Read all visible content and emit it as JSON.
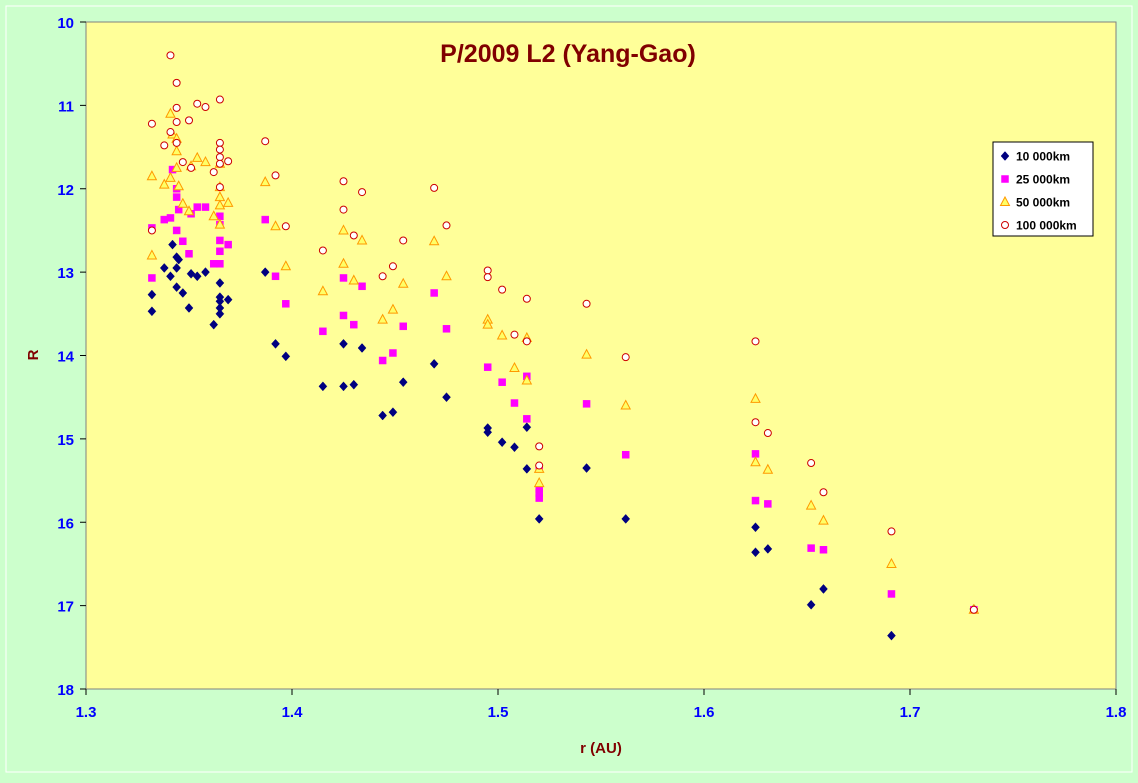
{
  "chart_data": {
    "type": "scatter",
    "title": "P/2009 L2 (Yang-Gao)",
    "xlabel": "r (AU)",
    "ylabel": "R",
    "xlim": [
      1.3,
      1.8
    ],
    "ylim": [
      10,
      18
    ],
    "y_inverted": true,
    "x_ticks": [
      "1.3",
      "1.4",
      "1.5",
      "1.6",
      "1.7",
      "1.8"
    ],
    "y_ticks": [
      "10",
      "11",
      "12",
      "13",
      "14",
      "15",
      "16",
      "17",
      "18"
    ],
    "grid": false,
    "legend_position": "top-right",
    "colors": {
      "plot_background": "#ffff99",
      "outer_background": "#ccffcc",
      "title": "#800000",
      "axis_labels": "#800000",
      "tick_labels": "#0000ff"
    },
    "series": [
      {
        "name": "10 000km",
        "marker": "diamond",
        "color": "#000080",
        "points": [
          [
            1.332,
            13.47
          ],
          [
            1.332,
            13.27
          ],
          [
            1.338,
            12.95
          ],
          [
            1.341,
            13.05
          ],
          [
            1.342,
            12.67
          ],
          [
            1.344,
            12.95
          ],
          [
            1.344,
            12.82
          ],
          [
            1.345,
            12.85
          ],
          [
            1.344,
            13.18
          ],
          [
            1.347,
            13.25
          ],
          [
            1.35,
            13.43
          ],
          [
            1.351,
            13.02
          ],
          [
            1.354,
            13.05
          ],
          [
            1.358,
            13.0
          ],
          [
            1.362,
            13.63
          ],
          [
            1.365,
            13.13
          ],
          [
            1.365,
            13.3
          ],
          [
            1.365,
            13.35
          ],
          [
            1.365,
            13.43
          ],
          [
            1.365,
            13.5
          ],
          [
            1.369,
            13.33
          ],
          [
            1.387,
            13.0
          ],
          [
            1.392,
            13.86
          ],
          [
            1.397,
            14.01
          ],
          [
            1.415,
            14.37
          ],
          [
            1.425,
            13.86
          ],
          [
            1.425,
            14.37
          ],
          [
            1.43,
            14.35
          ],
          [
            1.434,
            13.91
          ],
          [
            1.444,
            14.72
          ],
          [
            1.449,
            14.68
          ],
          [
            1.454,
            14.32
          ],
          [
            1.469,
            14.1
          ],
          [
            1.475,
            14.5
          ],
          [
            1.495,
            14.87
          ],
          [
            1.495,
            14.92
          ],
          [
            1.502,
            15.04
          ],
          [
            1.508,
            15.1
          ],
          [
            1.514,
            14.86
          ],
          [
            1.514,
            15.36
          ],
          [
            1.52,
            15.96
          ],
          [
            1.543,
            15.35
          ],
          [
            1.562,
            15.96
          ],
          [
            1.625,
            16.06
          ],
          [
            1.625,
            16.36
          ],
          [
            1.631,
            16.32
          ],
          [
            1.652,
            16.99
          ],
          [
            1.658,
            16.8
          ],
          [
            1.691,
            17.36
          ],
          [
            1.731,
            17.04
          ]
        ]
      },
      {
        "name": "25 000km",
        "marker": "square",
        "color": "#ff00ff",
        "points": [
          [
            1.332,
            12.47
          ],
          [
            1.332,
            13.07
          ],
          [
            1.338,
            12.37
          ],
          [
            1.341,
            12.35
          ],
          [
            1.342,
            11.77
          ],
          [
            1.344,
            12.0
          ],
          [
            1.344,
            12.1
          ],
          [
            1.345,
            12.25
          ],
          [
            1.344,
            12.5
          ],
          [
            1.347,
            12.63
          ],
          [
            1.35,
            12.78
          ],
          [
            1.351,
            12.3
          ],
          [
            1.354,
            12.22
          ],
          [
            1.358,
            12.22
          ],
          [
            1.362,
            12.9
          ],
          [
            1.365,
            12.33
          ],
          [
            1.365,
            12.43
          ],
          [
            1.365,
            12.62
          ],
          [
            1.365,
            12.75
          ],
          [
            1.365,
            12.9
          ],
          [
            1.369,
            12.67
          ],
          [
            1.387,
            12.37
          ],
          [
            1.392,
            13.05
          ],
          [
            1.397,
            13.38
          ],
          [
            1.415,
            13.71
          ],
          [
            1.425,
            13.07
          ],
          [
            1.425,
            13.52
          ],
          [
            1.43,
            13.63
          ],
          [
            1.434,
            13.17
          ],
          [
            1.444,
            14.06
          ],
          [
            1.449,
            13.97
          ],
          [
            1.454,
            13.65
          ],
          [
            1.469,
            13.25
          ],
          [
            1.475,
            13.68
          ],
          [
            1.495,
            14.14
          ],
          [
            1.502,
            14.32
          ],
          [
            1.508,
            14.57
          ],
          [
            1.514,
            14.25
          ],
          [
            1.514,
            14.76
          ],
          [
            1.52,
            15.35
          ],
          [
            1.52,
            15.6
          ],
          [
            1.52,
            15.65
          ],
          [
            1.52,
            15.71
          ],
          [
            1.543,
            14.58
          ],
          [
            1.562,
            15.19
          ],
          [
            1.625,
            15.18
          ],
          [
            1.625,
            15.74
          ],
          [
            1.631,
            15.78
          ],
          [
            1.652,
            16.31
          ],
          [
            1.658,
            16.33
          ],
          [
            1.691,
            16.86
          ],
          [
            1.731,
            17.05
          ]
        ]
      },
      {
        "name": "50 000km",
        "marker": "triangle",
        "color": "#ff9900",
        "points": [
          [
            1.332,
            11.85
          ],
          [
            1.332,
            12.8
          ],
          [
            1.338,
            11.95
          ],
          [
            1.341,
            11.1
          ],
          [
            1.341,
            11.87
          ],
          [
            1.342,
            11.35
          ],
          [
            1.344,
            11.4
          ],
          [
            1.344,
            11.55
          ],
          [
            1.344,
            11.75
          ],
          [
            1.345,
            11.97
          ],
          [
            1.347,
            12.18
          ],
          [
            1.35,
            12.27
          ],
          [
            1.351,
            11.73
          ],
          [
            1.354,
            11.63
          ],
          [
            1.358,
            11.68
          ],
          [
            1.362,
            12.33
          ],
          [
            1.365,
            11.7
          ],
          [
            1.365,
            11.98
          ],
          [
            1.365,
            12.1
          ],
          [
            1.365,
            12.2
          ],
          [
            1.365,
            12.43
          ],
          [
            1.369,
            12.17
          ],
          [
            1.387,
            11.92
          ],
          [
            1.392,
            12.45
          ],
          [
            1.397,
            12.93
          ],
          [
            1.415,
            13.23
          ],
          [
            1.425,
            12.5
          ],
          [
            1.425,
            12.9
          ],
          [
            1.43,
            13.1
          ],
          [
            1.434,
            12.62
          ],
          [
            1.444,
            13.57
          ],
          [
            1.449,
            13.45
          ],
          [
            1.454,
            13.14
          ],
          [
            1.469,
            12.63
          ],
          [
            1.475,
            13.05
          ],
          [
            1.495,
            13.57
          ],
          [
            1.495,
            13.63
          ],
          [
            1.502,
            13.76
          ],
          [
            1.508,
            14.15
          ],
          [
            1.514,
            13.79
          ],
          [
            1.514,
            14.3
          ],
          [
            1.52,
            15.36
          ],
          [
            1.52,
            15.53
          ],
          [
            1.543,
            13.99
          ],
          [
            1.562,
            14.6
          ],
          [
            1.625,
            14.52
          ],
          [
            1.625,
            15.28
          ],
          [
            1.631,
            15.37
          ],
          [
            1.652,
            15.8
          ],
          [
            1.658,
            15.98
          ],
          [
            1.691,
            16.5
          ],
          [
            1.731,
            17.05
          ]
        ]
      },
      {
        "name": "100 000km",
        "marker": "circle",
        "color": "#cc0000",
        "points": [
          [
            1.332,
            11.22
          ],
          [
            1.332,
            12.5
          ],
          [
            1.338,
            11.48
          ],
          [
            1.341,
            10.4
          ],
          [
            1.341,
            11.32
          ],
          [
            1.344,
            10.73
          ],
          [
            1.344,
            11.03
          ],
          [
            1.344,
            11.2
          ],
          [
            1.344,
            11.45
          ],
          [
            1.347,
            11.68
          ],
          [
            1.35,
            11.18
          ],
          [
            1.351,
            11.75
          ],
          [
            1.354,
            10.98
          ],
          [
            1.358,
            11.02
          ],
          [
            1.362,
            11.8
          ],
          [
            1.365,
            10.93
          ],
          [
            1.365,
            11.45
          ],
          [
            1.365,
            11.53
          ],
          [
            1.365,
            11.62
          ],
          [
            1.365,
            11.7
          ],
          [
            1.365,
            11.98
          ],
          [
            1.369,
            11.67
          ],
          [
            1.387,
            11.43
          ],
          [
            1.392,
            11.84
          ],
          [
            1.397,
            12.45
          ],
          [
            1.415,
            12.74
          ],
          [
            1.425,
            11.91
          ],
          [
            1.425,
            12.25
          ],
          [
            1.43,
            12.56
          ],
          [
            1.434,
            12.04
          ],
          [
            1.444,
            13.05
          ],
          [
            1.449,
            12.93
          ],
          [
            1.454,
            12.62
          ],
          [
            1.469,
            11.99
          ],
          [
            1.475,
            12.44
          ],
          [
            1.495,
            12.98
          ],
          [
            1.495,
            13.06
          ],
          [
            1.502,
            13.21
          ],
          [
            1.508,
            13.75
          ],
          [
            1.514,
            13.32
          ],
          [
            1.514,
            13.83
          ],
          [
            1.52,
            15.09
          ],
          [
            1.52,
            15.32
          ],
          [
            1.543,
            13.38
          ],
          [
            1.562,
            14.02
          ],
          [
            1.625,
            13.83
          ],
          [
            1.625,
            14.8
          ],
          [
            1.631,
            14.93
          ],
          [
            1.652,
            15.29
          ],
          [
            1.658,
            15.64
          ],
          [
            1.691,
            16.11
          ],
          [
            1.731,
            17.05
          ]
        ]
      }
    ]
  }
}
